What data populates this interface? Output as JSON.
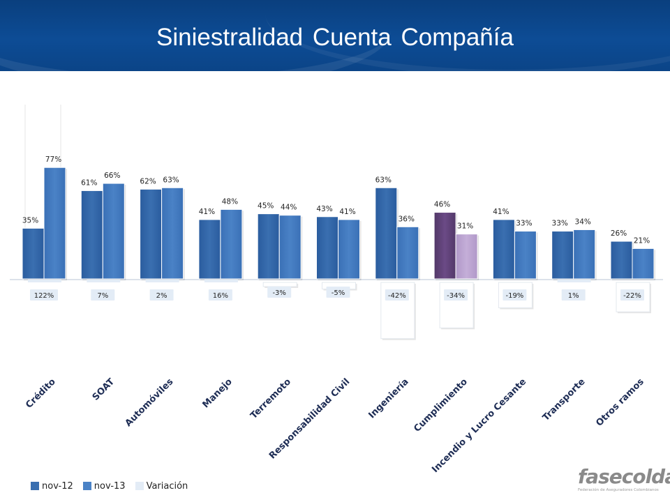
{
  "title": "Siniestralidad Cuenta Compañía",
  "colors": {
    "nov12": "#3a6fb0",
    "nov13": "#4a82c6",
    "variacion": "#e3ecf6",
    "highlight12": "#6b4a86",
    "highlight13": "#c4aed8",
    "header": "#0d4c95"
  },
  "legend": {
    "nov12": "nov-12",
    "nov13": "nov-13",
    "variacion": "Variación"
  },
  "logo": {
    "word": "fasecolda",
    "tagline": "Federación de Aseguradores Colombianos"
  },
  "chart_data": {
    "type": "bar",
    "title": "Siniestralidad Cuenta Compañía",
    "categories": [
      "Crédito",
      "SOAT",
      "Automóviles",
      "Manejo",
      "Terremoto",
      "Responsabilidad Civil",
      "Ingeniería",
      "Cumplimiento",
      "Incendio y Lucro Cesante",
      "Transporte",
      "Otros ramos"
    ],
    "series": [
      {
        "name": "nov-12",
        "values": [
          35,
          61,
          62,
          41,
          45,
          43,
          63,
          46,
          41,
          33,
          26
        ],
        "labels": [
          "35%",
          "61%",
          "62%",
          "41%",
          "45%",
          "43%",
          "63%",
          "46%",
          "41%",
          "33%",
          "26%"
        ]
      },
      {
        "name": "nov-13",
        "values": [
          77,
          66,
          63,
          48,
          44,
          41,
          36,
          31,
          33,
          34,
          21
        ],
        "labels": [
          "77%",
          "66%",
          "63%",
          "48%",
          "44%",
          "41%",
          "36%",
          "31%",
          "33%",
          "34%",
          "21%"
        ]
      },
      {
        "name": "Variación",
        "values": [
          122,
          7,
          2,
          16,
          -3,
          -5,
          -42,
          -34,
          -19,
          1,
          -22
        ],
        "labels": [
          "122%",
          "7%",
          "2%",
          "16%",
          "-3%",
          "-5%",
          "-42%",
          "-34%",
          "-19%",
          "1%",
          "-22%"
        ]
      }
    ],
    "highlight_category": "Cumplimiento",
    "grid": false,
    "legend_position": "bottom-left"
  }
}
